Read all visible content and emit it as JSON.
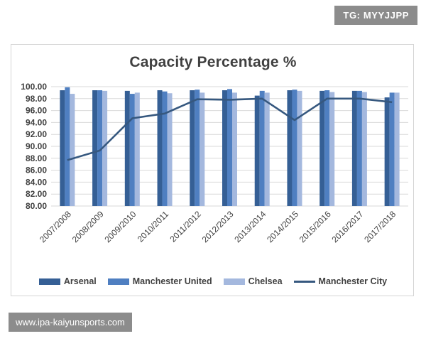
{
  "watermarks": {
    "tg_label": "TG: MYYJJPP",
    "site_label": "www.ipa-kaiyunsports.com"
  },
  "colors": {
    "arsenal": "#355f95",
    "manchester_united": "#4f7fc1",
    "chelsea": "#a4b8de",
    "manchester_city": "#36587f",
    "grid": "#d9d9d9",
    "axis_text": "#404040"
  },
  "chart_data": {
    "type": "bar",
    "title": "Capacity Percentage %",
    "xlabel": "",
    "ylabel": "",
    "ylim": [
      80,
      100
    ],
    "yticks": [
      "80.00",
      "82.00",
      "84.00",
      "86.00",
      "88.00",
      "90.00",
      "92.00",
      "94.00",
      "96.00",
      "98.00",
      "100.00"
    ],
    "categories": [
      "2007/2008",
      "2008/2009",
      "2009/2010",
      "2010/2011",
      "2011/2012",
      "2012/2013",
      "2013/2014",
      "2014/2015",
      "2015/2016",
      "2016/2017",
      "2017/2018"
    ],
    "series": [
      {
        "name": "Arsenal",
        "type": "bar",
        "values": [
          99.4,
          99.4,
          99.3,
          99.4,
          99.4,
          99.4,
          98.5,
          99.4,
          99.3,
          99.3,
          98.2
        ]
      },
      {
        "name": "Manchester United",
        "type": "bar",
        "values": [
          99.9,
          99.4,
          98.8,
          99.2,
          99.5,
          99.6,
          99.3,
          99.5,
          99.4,
          99.3,
          99.0
        ]
      },
      {
        "name": "Chelsea",
        "type": "bar",
        "values": [
          98.8,
          99.3,
          99.0,
          98.9,
          99.0,
          99.0,
          99.0,
          99.3,
          99.1,
          99.1,
          99.0
        ]
      },
      {
        "name": "Manchester City",
        "type": "line",
        "values": [
          87.7,
          89.3,
          94.7,
          95.5,
          97.9,
          97.8,
          98.0,
          94.4,
          98.0,
          98.0,
          97.4
        ]
      }
    ],
    "grid": true,
    "legend_position": "bottom"
  }
}
